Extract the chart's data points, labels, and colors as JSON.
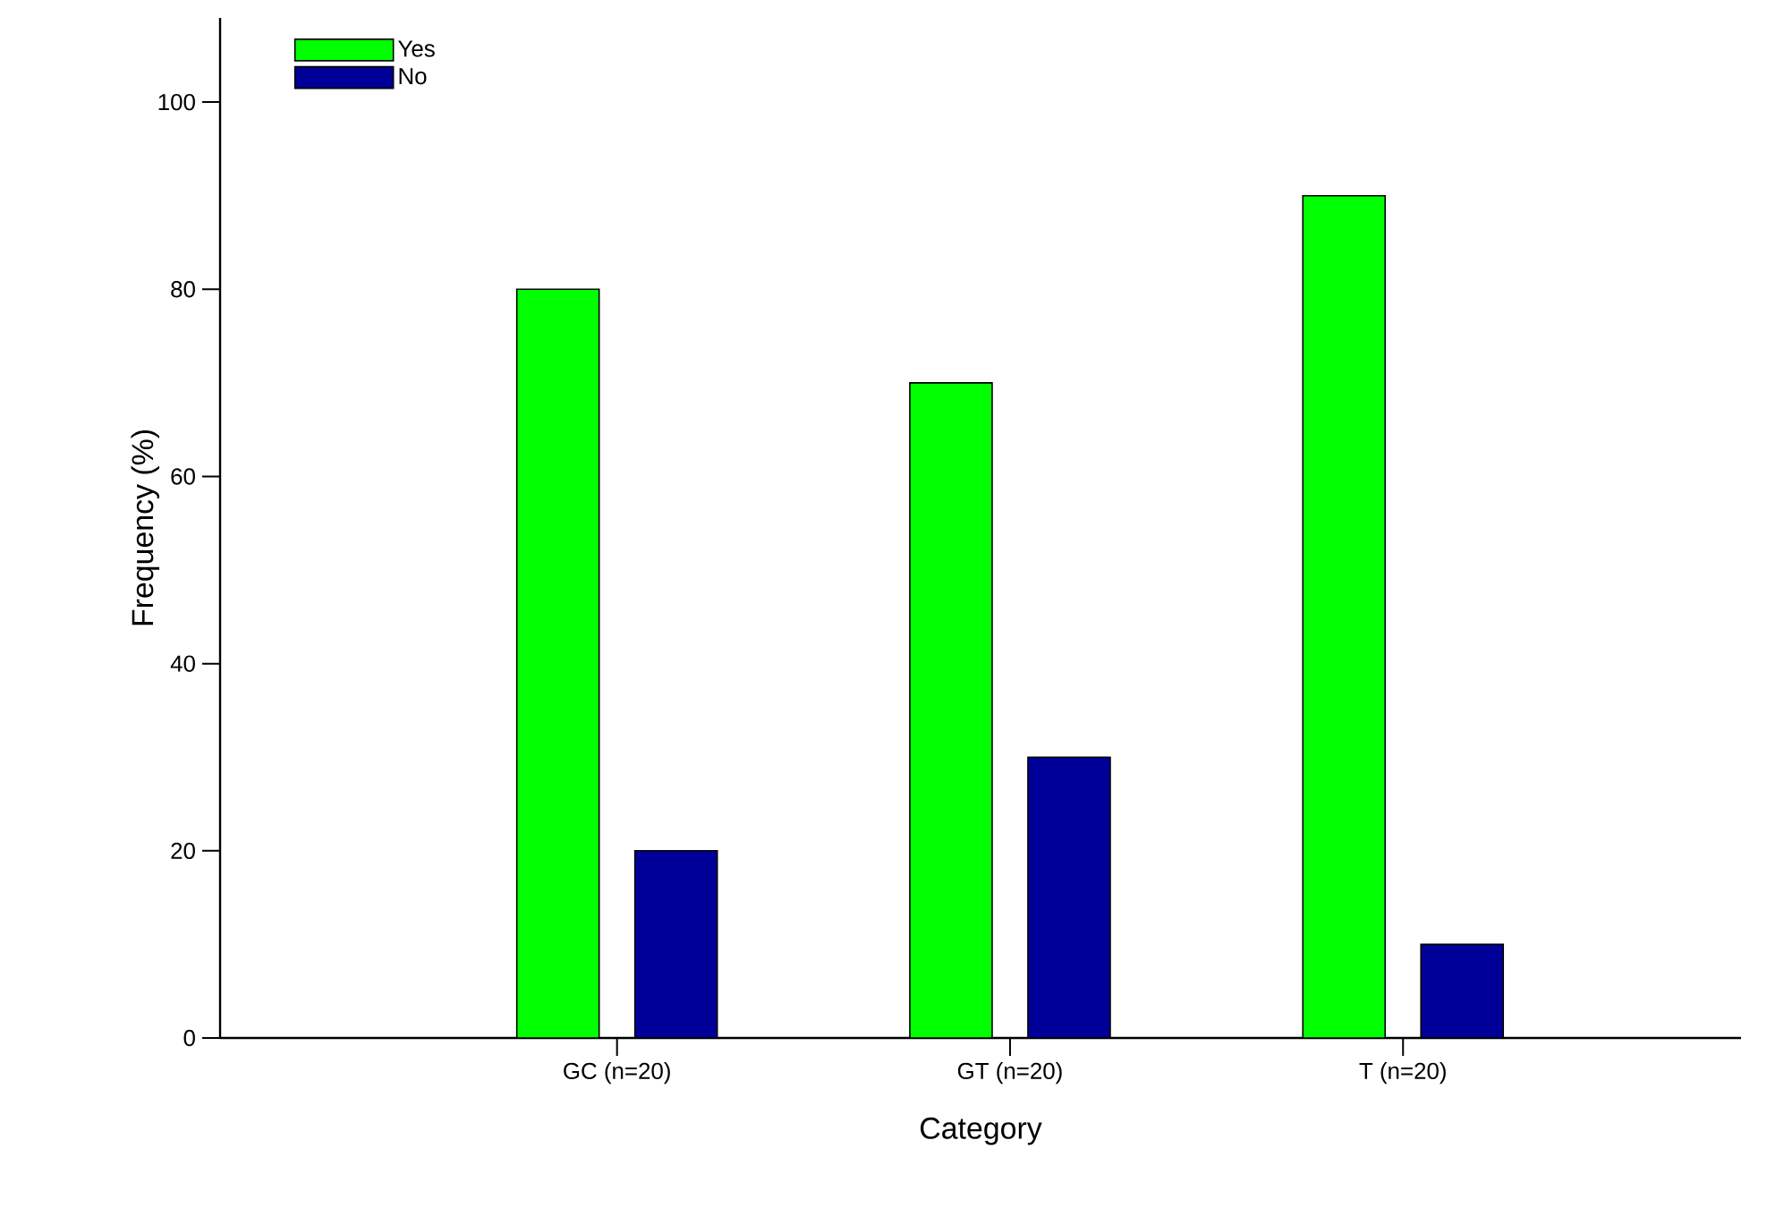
{
  "chart_data": {
    "type": "bar",
    "xlabel": "Category",
    "ylabel": "Frequency (%)",
    "categories": [
      "GC (n=20)",
      "GT (n=20)",
      "T (n=20)"
    ],
    "series": [
      {
        "name": "Yes",
        "color": "#00ff00",
        "values": [
          80,
          70,
          90
        ]
      },
      {
        "name": "No",
        "color": "#000099",
        "values": [
          20,
          30,
          10
        ]
      }
    ],
    "ylim": [
      0,
      109
    ],
    "yticks": [
      0,
      20,
      40,
      60,
      80,
      100
    ],
    "grid": false,
    "legend": "top left"
  }
}
